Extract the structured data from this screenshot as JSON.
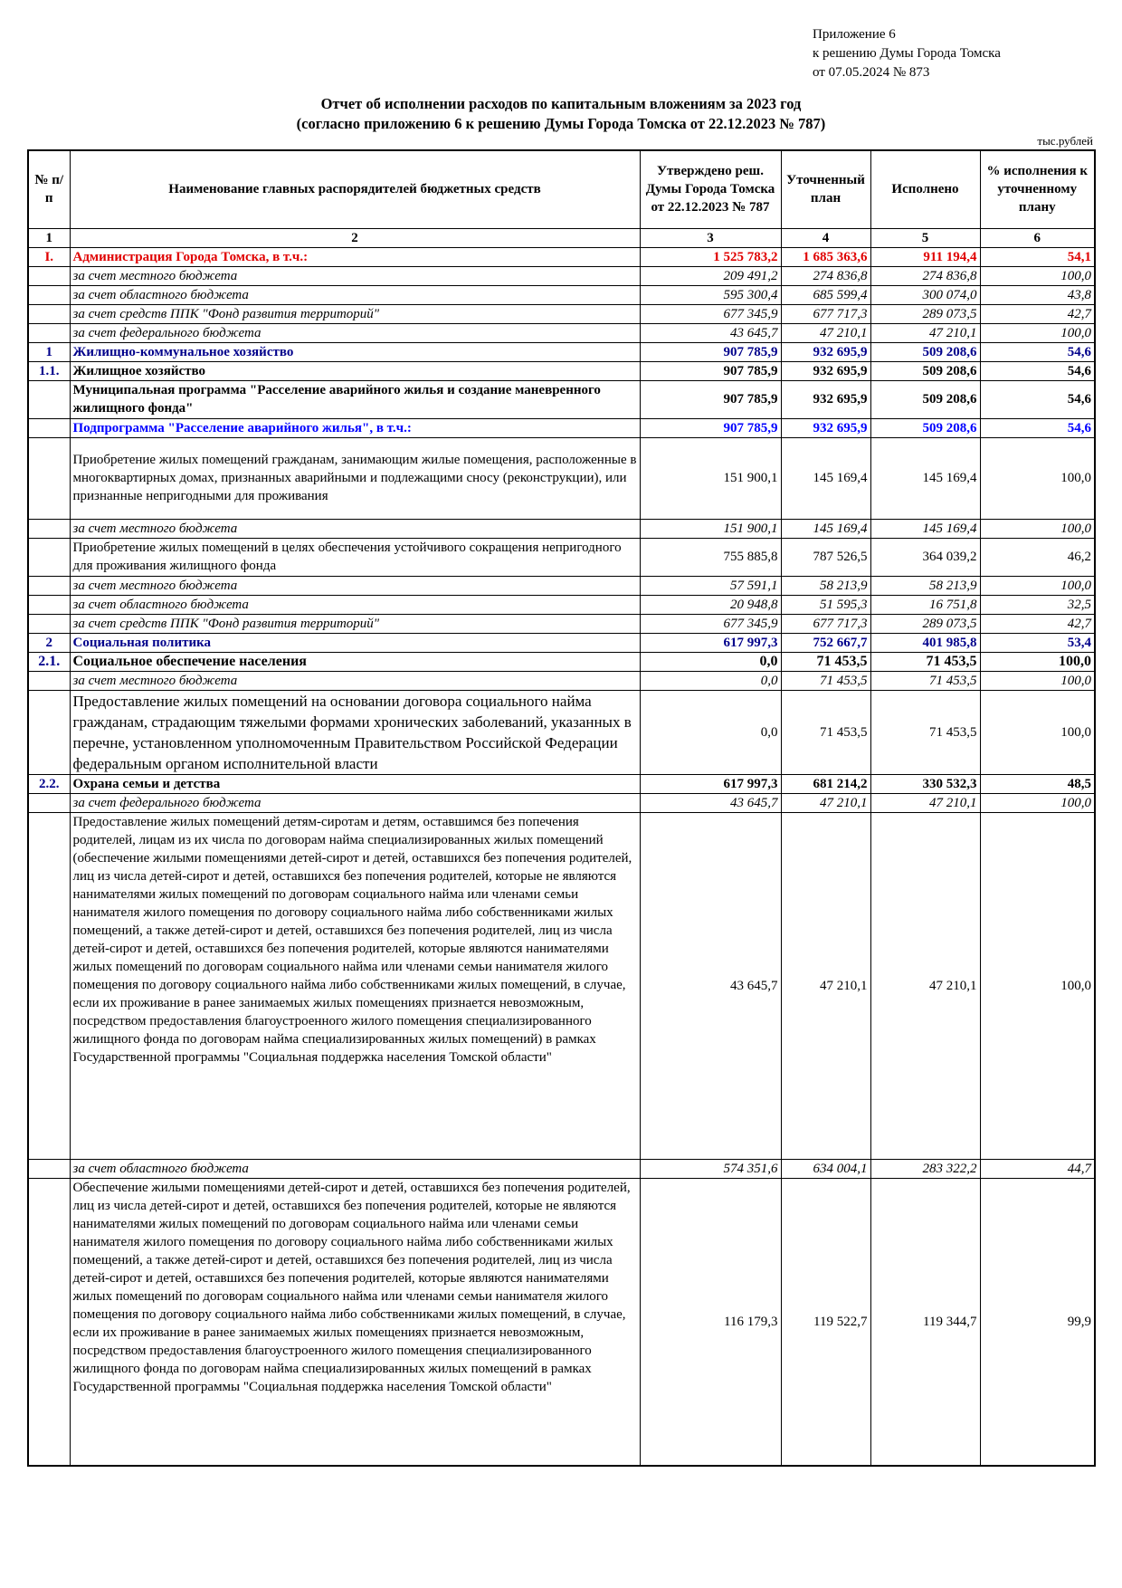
{
  "appendix": [
    "Приложение 6",
    "к решению Думы Города Томска",
    "от 07.05.2024 № 873"
  ],
  "title": [
    "Отчет об исполнении расходов по капитальным вложениям за 2023 год",
    "(согласно приложению 6 к решению Думы Города Томска от 22.12.2023 № 787)"
  ],
  "units": "тыс.рублей",
  "headers": [
    "№ п/п",
    "Наименование главных распорядителей бюджетных средств",
    "Утверждено реш. Думы Города Томска от 22.12.2023 № 787",
    "Уточненный план",
    "Исполнено",
    "% исполнения к уточненному плану"
  ],
  "column_numbers": [
    "1",
    "2",
    "3",
    "4",
    "5",
    "6"
  ],
  "colors": {
    "red": "#e00000",
    "navy": "#00008b",
    "blue": "#0000ff"
  },
  "rows": [
    {
      "style": "red",
      "h": 21,
      "no": "I.",
      "name": "Администрация Города Томска, в т.ч.:",
      "c3": "1 525 783,2",
      "c4": "1 685 363,6",
      "c5": "911 194,4",
      "c6": "54,1"
    },
    {
      "style": "ital",
      "h": 21,
      "no": "",
      "name": "за счет  местного бюджета",
      "c3": "209 491,2",
      "c4": "274 836,8",
      "c5": "274 836,8",
      "c6": "100,0"
    },
    {
      "style": "ital",
      "h": 21,
      "no": "",
      "name": "за счет областного бюджета",
      "c3": "595 300,4",
      "c4": "685 599,4",
      "c5": "300 074,0",
      "c6": "43,8"
    },
    {
      "style": "ital",
      "h": 21,
      "no": "",
      "name": "за счет средств ППК \"Фонд развития территорий\"",
      "c3": "677 345,9",
      "c4": "677 717,3",
      "c5": "289 073,5",
      "c6": "42,7"
    },
    {
      "style": "ital",
      "h": 21,
      "no": "",
      "name": "за счет федерального бюджета",
      "c3": "43 645,7",
      "c4": "47 210,1",
      "c5": "47 210,1",
      "c6": "100,0"
    },
    {
      "style": "navy",
      "h": 21,
      "no": "1",
      "name": "Жилищно-коммунальное хозяйство",
      "c3": "907 785,9",
      "c4": "932 695,9",
      "c5": "509 208,6",
      "c6": "54,6"
    },
    {
      "style": "bold",
      "h": 21,
      "no": "1.1.",
      "name": "Жилищное хозяйство",
      "c3": "907 785,9",
      "c4": "932 695,9",
      "c5": "509 208,6",
      "c6": "54,6"
    },
    {
      "style": "bold",
      "h": 42,
      "no": "",
      "name": "Муниципальная программа \"Расселение аварийного жилья и создание маневренного жилищного фонда\"",
      "c3": "907 785,9",
      "c4": "932 695,9",
      "c5": "509 208,6",
      "c6": "54,6"
    },
    {
      "style": "blue",
      "h": 21,
      "no": "",
      "name": "Подпрограмма \"Расселение аварийного жилья\", в т.ч.:",
      "c3": "907 785,9",
      "c4": "932 695,9",
      "c5": "509 208,6",
      "c6": "54,6"
    },
    {
      "style": "",
      "h": 90,
      "no": "",
      "name": "Приобретение жилых помещений гражданам, занимающим жилые помещения, расположенные в многоквартирных домах, признанных аварийными и подлежащими сносу (реконструкции), или признанные непригодными для проживания",
      "c3": "151 900,1",
      "c4": "145 169,4",
      "c5": "145 169,4",
      "c6": "100,0"
    },
    {
      "style": "ital",
      "h": 21,
      "no": "",
      "name": "за счет  местного бюджета",
      "c3": "151 900,1",
      "c4": "145 169,4",
      "c5": "145 169,4",
      "c6": "100,0"
    },
    {
      "style": "",
      "h": 42,
      "no": "",
      "name": "Приобретение жилых помещений в целях обеспечения устойчивого сокращения непригодного для проживания жилищного фонда",
      "c3": "755 885,8",
      "c4": "787 526,5",
      "c5": "364 039,2",
      "c6": "46,2"
    },
    {
      "style": "ital",
      "h": 21,
      "no": "",
      "name": "за счет  местного бюджета",
      "c3": "57 591,1",
      "c4": "58 213,9",
      "c5": "58 213,9",
      "c6": "100,0"
    },
    {
      "style": "ital",
      "h": 21,
      "no": "",
      "name": "за счет  областного бюджета",
      "c3": "20 948,8",
      "c4": "51 595,3",
      "c5": "16 751,8",
      "c6": "32,5"
    },
    {
      "style": "ital",
      "h": 21,
      "no": "",
      "name": "за счет средств ППК \"Фонд развития территорий\"",
      "c3": "677 345,9",
      "c4": "677 717,3",
      "c5": "289 073,5",
      "c6": "42,7"
    },
    {
      "style": "navy",
      "h": 21,
      "no": "2",
      "name": "Социальная политика",
      "c3": "617 997,3",
      "c4": "752 667,7",
      "c5": "401 985,8",
      "c6": "53,4"
    },
    {
      "style": "bold16",
      "h": 21,
      "no": "2.1.",
      "name": "Социальное обеспечение населения",
      "c3": "0,0",
      "c4": "71 453,5",
      "c5": "71 453,5",
      "c6": "100,0"
    },
    {
      "style": "ital",
      "h": 21,
      "no": "",
      "name": "за счет  местного бюджета",
      "c3": "0,0",
      "c4": "71 453,5",
      "c5": "71 453,5",
      "c6": "100,0"
    },
    {
      "style": "big",
      "h": 90,
      "no": "",
      "name": "Предоставление жилых помещений на основании договора социального найма гражданам, страдающим тяжелыми формами хронических заболеваний, указанных в перечне, установленном уполномоченным Правительством Российской Федерации федеральным органом исполнительной власти",
      "c3": "0,0",
      "c4": "71 453,5",
      "c5": "71 453,5",
      "c6": "100,0"
    },
    {
      "style": "bold",
      "h": 21,
      "no": "2.2.",
      "name": "Охрана семьи и детства",
      "c3": "617 997,3",
      "c4": "681 214,2",
      "c5": "330 532,3",
      "c6": "48,5"
    },
    {
      "style": "ital",
      "h": 21,
      "no": "",
      "name": "за счет федерального бюджета",
      "c3": "43 645,7",
      "c4": "47 210,1",
      "c5": "47 210,1",
      "c6": "100,0"
    },
    {
      "style": "",
      "h": 383,
      "valign": "top",
      "no": "",
      "name": "Предоставление жилых помещений детям-сиротам и детям, оставшимся без попечения родителей, лицам из их числа по договорам найма специализированных жилых помещений (обеспечение жилыми помещениями детей-сирот и детей, оставшихся без попечения родителей, лиц из числа детей-сирот и детей, оставшихся без попечения родителей, которые не являются нанимателями жилых помещений по договорам социального найма или членами семьи нанимателя жилого помещения по договору социального найма либо собственниками жилых помещений, а также детей-сирот и детей, оставшихся без попечения родителей, лиц из числа детей-сирот и детей, оставшихся без попечения родителей, которые являются нанимателями жилых помещений по договорам социального найма или членами семьи нанимателя жилого помещения по договору социального найма либо собственниками жилых помещений, в случае, если их проживание в ранее занимаемых жилых помещениях признается невозможным, посредством предоставления благоустроенного жилого помещения специализированного жилищного фонда по договорам найма специализированных жилых помещений) в рамках Государственной программы \"Социальная поддержка населения Томской области\"",
      "c3": "43 645,7",
      "c4": "47 210,1",
      "c5": "47 210,1",
      "c6": "100,0"
    },
    {
      "style": "ital",
      "h": 21,
      "no": "",
      "name": "за счет областного бюджета",
      "c3": "574 351,6",
      "c4": "634 004,1",
      "c5": "283 322,2",
      "c6": "44,7"
    },
    {
      "style": "",
      "h": 318,
      "valign": "top",
      "no": "",
      "name": "Обеспечение жилыми помещениями детей-сирот и детей, оставшихся без попечения родителей, лиц из числа детей-сирот и детей, оставшихся без попечения родителей, которые не являются нанимателями жилых помещений по договорам социального найма или членами семьи нанимателя жилого помещения по договору социального найма либо собственниками жилых помещений, а также детей-сирот и детей, оставшихся без попечения родителей, лиц из числа детей-сирот и детей, оставшихся без попечения родителей, которые являются нанимателями жилых помещений по договорам социального найма или членами семьи нанимателя жилого помещения по договору социального найма либо собственниками жилых помещений, в случае, если их проживание в ранее занимаемых жилых помещениях признается невозможным, посредством предоставления благоустроенного жилого помещения специализированного жилищного фонда по договорам найма специализированных жилых помещений  в рамках Государственной программы \"Социальная поддержка населения Томской области\"",
      "c3": "116 179,3",
      "c4": "119 522,7",
      "c5": "119 344,7",
      "c6": "99,9"
    }
  ]
}
